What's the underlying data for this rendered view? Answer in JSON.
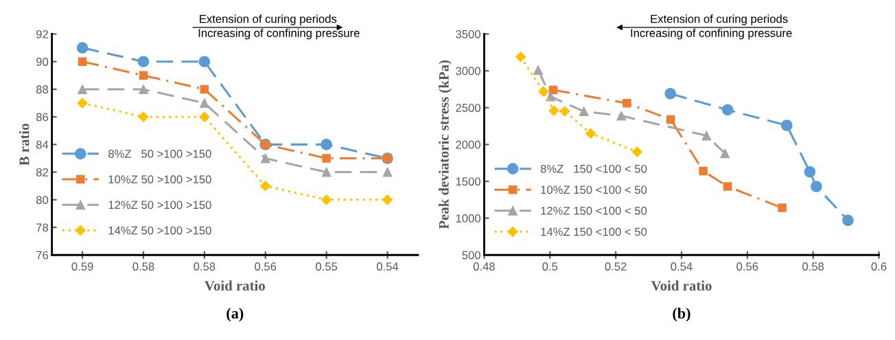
{
  "chart_data": [
    {
      "type": "line",
      "categories": [
        "0.59",
        "0.58",
        "0.58",
        "0.56",
        "0.55",
        "0.54"
      ],
      "xlabel": "Void ratio",
      "ylabel": "B ratio",
      "ylim": [
        76,
        92
      ],
      "yticks": [
        76,
        78,
        80,
        82,
        84,
        86,
        88,
        90,
        92
      ],
      "grid": false,
      "legend": "center left",
      "annotations": [
        "Extension of curing periods",
        "Increasing of confining pressure",
        "(a)"
      ],
      "series": [
        {
          "name": "8%Z   50 >100 >150",
          "color": "#5b9bd5",
          "marker": "circle",
          "line_style": "dashed",
          "values": [
            91,
            90,
            90,
            84,
            84,
            83
          ]
        },
        {
          "name": "10%Z 50 >100 >150",
          "color": "#ed7d31",
          "marker": "square",
          "line_style": "dashdot",
          "values": [
            90,
            89,
            88,
            84,
            83,
            83
          ]
        },
        {
          "name": "12%Z 50 >100 >150",
          "color": "#a5a5a5",
          "marker": "triangle",
          "line_style": "dashed",
          "values": [
            88,
            88,
            87,
            83,
            82,
            82
          ]
        },
        {
          "name": "14%Z 50 >100 >150",
          "color": "#ffc000",
          "marker": "diamond",
          "line_style": "dotted",
          "values": [
            87,
            86,
            86,
            81,
            80,
            80
          ]
        }
      ]
    },
    {
      "type": "line",
      "xlabel": "Void ratio",
      "ylabel": "Peak deviatoric stress (kPa)",
      "xlim": [
        0.48,
        0.6
      ],
      "xticks": [
        0.48,
        0.5,
        0.52,
        0.54,
        0.56,
        0.58,
        0.6
      ],
      "ylim": [
        500,
        3500
      ],
      "yticks": [
        500,
        1000,
        1500,
        2000,
        2500,
        3000,
        3500
      ],
      "grid": false,
      "legend": "bottom left",
      "annotations": [
        "Extension of curing periods",
        "Increasing of confining pressure",
        "(b)"
      ],
      "series": [
        {
          "name": "8%Z   150 <100 < 50",
          "color": "#5b9bd5",
          "marker": "circle",
          "line_style": "dashed",
          "x": [
            0.5366,
            0.554,
            0.572,
            0.579,
            0.581,
            0.5906
          ],
          "values": [
            2690,
            2470,
            2260,
            1630,
            1430,
            970
          ]
        },
        {
          "name": "10%Z 150 <100 < 50",
          "color": "#ed7d31",
          "marker": "square",
          "line_style": "dashdot",
          "x": [
            0.501,
            0.5234,
            0.5367,
            0.5466,
            0.554,
            0.5706
          ],
          "values": [
            2740,
            2560,
            2340,
            1640,
            1430,
            1140
          ]
        },
        {
          "name": "12%Z 150 <100 < 50",
          "color": "#a5a5a5",
          "marker": "triangle",
          "line_style": "dashed",
          "x": [
            0.4964,
            0.5002,
            0.5103,
            0.5217,
            0.5476,
            0.5532
          ],
          "values": [
            3010,
            2650,
            2450,
            2390,
            2120,
            1880
          ]
        },
        {
          "name": "14%Z 150 <100 < 50",
          "color": "#ffc000",
          "marker": "diamond",
          "line_style": "dotted",
          "x": [
            0.4911,
            0.498,
            0.5012,
            0.5045,
            0.5124,
            0.5265
          ],
          "values": [
            3190,
            2720,
            2460,
            2450,
            2150,
            1900
          ]
        }
      ]
    }
  ]
}
